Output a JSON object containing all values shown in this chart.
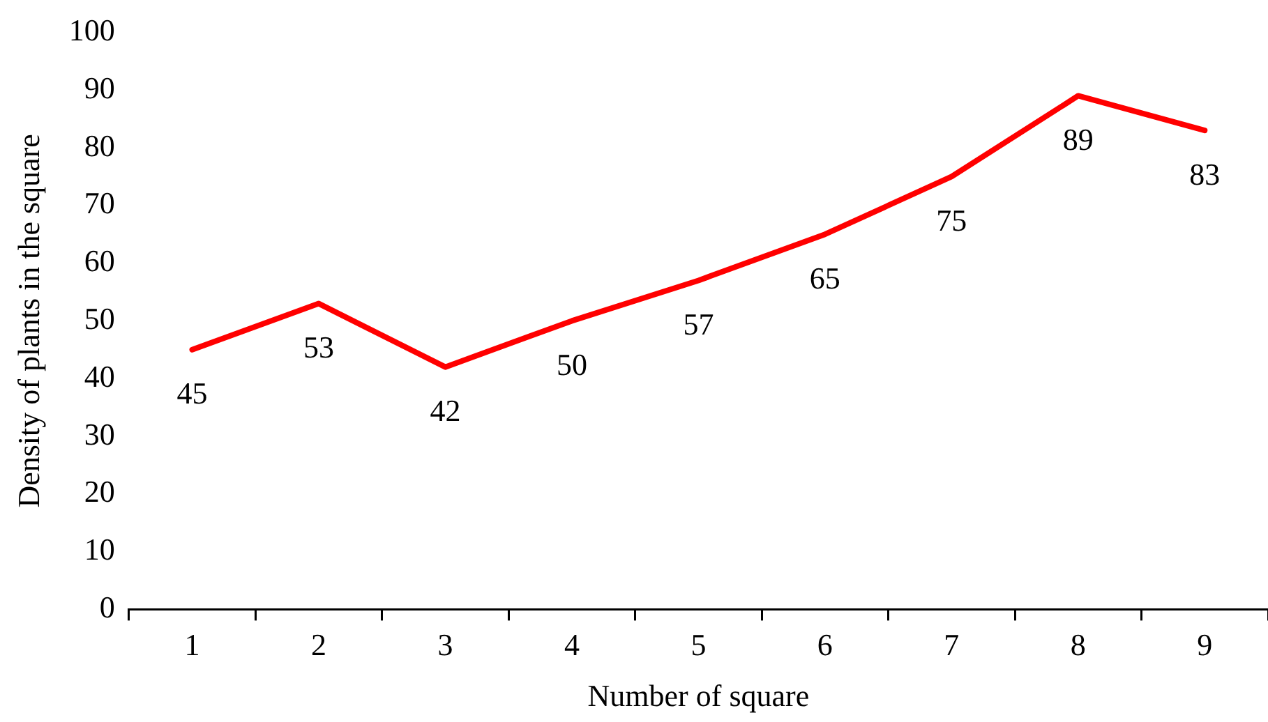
{
  "chart_data": {
    "type": "line",
    "xlabel": "Number of square",
    "ylabel": "Density of plants in the square",
    "categories": [
      "1",
      "2",
      "3",
      "4",
      "5",
      "6",
      "7",
      "8",
      "9"
    ],
    "series": [
      {
        "color": "#ff0000",
        "values": [
          45,
          53,
          42,
          50,
          57,
          65,
          75,
          89,
          83
        ]
      }
    ],
    "ylim": [
      0,
      100
    ],
    "yticks": [
      0,
      10,
      20,
      30,
      40,
      50,
      60,
      70,
      80,
      90,
      100
    ],
    "grid": false,
    "legend": false,
    "data_labels": true,
    "marker": "none",
    "line_style": "solid"
  }
}
